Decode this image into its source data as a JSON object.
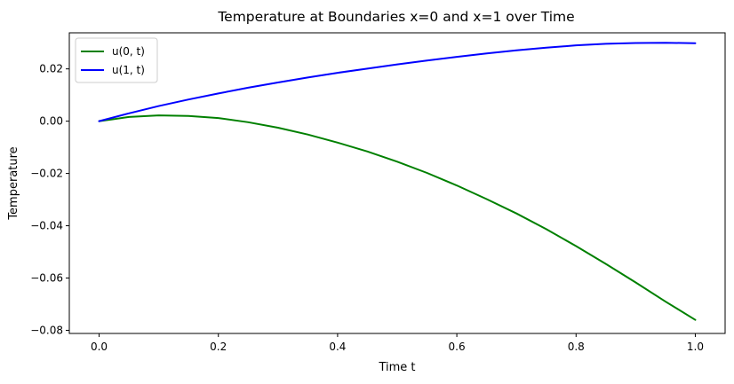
{
  "chart_data": {
    "type": "line",
    "title": "Temperature at Boundaries x=0 and x=1 over Time",
    "xlabel": "Time t",
    "ylabel": "Temperature",
    "xlim": [
      -0.05,
      1.05
    ],
    "ylim": [
      -0.0812,
      0.0338
    ],
    "xticks": [
      0.0,
      0.2,
      0.4,
      0.6,
      0.8,
      1.0
    ],
    "xtick_labels": [
      "0.0",
      "0.2",
      "0.4",
      "0.6",
      "0.8",
      "1.0"
    ],
    "yticks": [
      0.02,
      0.0,
      -0.02,
      -0.04,
      -0.06,
      -0.08
    ],
    "ytick_labels": [
      "0.02",
      "0.00",
      "−0.02",
      "−0.04",
      "−0.06",
      "−0.08"
    ],
    "grid": false,
    "legend": "top-left",
    "series": [
      {
        "name": "u(0, t)",
        "color": "#008000",
        "x": [
          0.0,
          0.05,
          0.1,
          0.15,
          0.2,
          0.25,
          0.3,
          0.35,
          0.4,
          0.45,
          0.5,
          0.55,
          0.6,
          0.65,
          0.7,
          0.75,
          0.8,
          0.85,
          0.9,
          0.95,
          1.0
        ],
        "y": [
          0.0,
          0.0016,
          0.0022,
          0.002,
          0.0012,
          -0.0004,
          -0.0025,
          -0.0051,
          -0.0082,
          -0.0116,
          -0.0155,
          -0.0198,
          -0.0246,
          -0.0298,
          -0.0353,
          -0.0413,
          -0.0478,
          -0.0546,
          -0.0617,
          -0.069,
          -0.076
        ]
      },
      {
        "name": "u(1, t)",
        "color": "#0000ff",
        "x": [
          0.0,
          0.05,
          0.1,
          0.15,
          0.2,
          0.25,
          0.3,
          0.35,
          0.4,
          0.45,
          0.5,
          0.55,
          0.6,
          0.65,
          0.7,
          0.75,
          0.8,
          0.85,
          0.9,
          0.95,
          1.0
        ],
        "y": [
          0.0,
          0.003,
          0.0058,
          0.0083,
          0.0106,
          0.0128,
          0.0148,
          0.0167,
          0.0185,
          0.0201,
          0.0217,
          0.0232,
          0.0246,
          0.0259,
          0.0271,
          0.0281,
          0.029,
          0.0296,
          0.0299,
          0.03,
          0.0298
        ]
      }
    ]
  }
}
